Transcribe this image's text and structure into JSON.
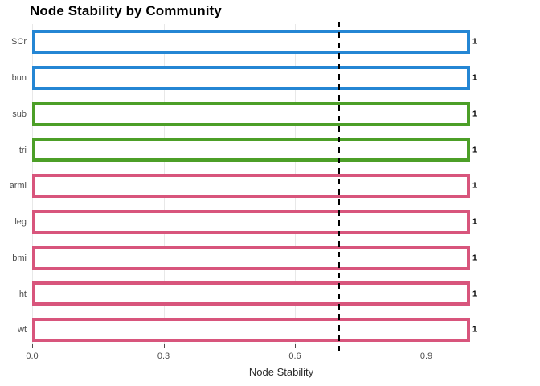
{
  "chart_data": {
    "type": "bar",
    "orientation": "horizontal",
    "title": "Node Stability by Community",
    "xlabel": "Node Stability",
    "categories": [
      "SCr",
      "bun",
      "sub",
      "tri",
      "arml",
      "leg",
      "bmi",
      "ht",
      "wt"
    ],
    "values": [
      1,
      1,
      1,
      1,
      1,
      1,
      1,
      1,
      1
    ],
    "bar_labels": [
      "1",
      "1",
      "1",
      "1",
      "1",
      "1",
      "1",
      "1",
      "1"
    ],
    "groups": [
      "community-1",
      "community-1",
      "community-2",
      "community-2",
      "community-3",
      "community-3",
      "community-3",
      "community-3",
      "community-3"
    ],
    "group_colors": {
      "community-1": "#2486D4",
      "community-2": "#4C9F27",
      "community-3": "#D8557C"
    },
    "bar_fill": "#FFFFFF",
    "x_ticks": [
      "0.0",
      "0.3",
      "0.6",
      "0.9"
    ],
    "x_tick_values": [
      0,
      0.3,
      0.6,
      0.9
    ],
    "xlim": [
      0,
      1.1376
    ],
    "reference_line": {
      "value": 0.7,
      "style": "dashed",
      "color": "#000000"
    },
    "grid": {
      "show": true,
      "color": "#E8E8E8"
    },
    "legend": "none"
  }
}
